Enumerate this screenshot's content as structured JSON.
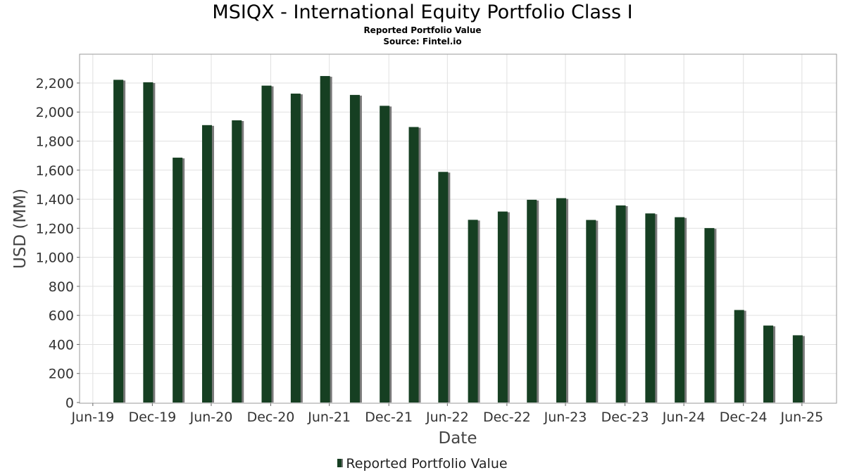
{
  "chart_data": {
    "type": "bar",
    "title": "MSIQX - International Equity Portfolio Class I",
    "subtitle": "Reported Portfolio Value",
    "source": "Source: Fintel.io",
    "xlabel": "Date",
    "ylabel": "USD (MM)",
    "ylim": [
      0,
      2350
    ],
    "yticks": [
      0,
      200,
      400,
      600,
      800,
      1000,
      1200,
      1400,
      1600,
      1800,
      2000,
      2200
    ],
    "ytick_labels": [
      "0",
      "200",
      "400",
      "600",
      "800",
      "1,000",
      "1,200",
      "1,400",
      "1,600",
      "1,800",
      "2,000",
      "2,200"
    ],
    "xlim": [
      "2019-05-20",
      "2025-10-15"
    ],
    "xticks": [
      "2019-06-30",
      "2019-12-31",
      "2020-06-30",
      "2020-12-31",
      "2021-06-30",
      "2021-12-31",
      "2022-06-30",
      "2022-12-31",
      "2023-06-30",
      "2023-12-31",
      "2024-06-30",
      "2024-12-31",
      "2025-06-30"
    ],
    "xtick_labels": [
      "Jun-19",
      "Dec-19",
      "Jun-20",
      "Dec-20",
      "Jun-21",
      "Dec-21",
      "Jun-22",
      "Dec-22",
      "Jun-23",
      "Dec-23",
      "Jun-24",
      "Dec-24",
      "Jun-25"
    ],
    "grid": true,
    "legend_position": "bottom",
    "colors": {
      "bar": "#163f22",
      "bar_shadow": "#7a7a7a",
      "grid": "#e0e0e0"
    },
    "series": [
      {
        "name": "Reported Portfolio Value",
        "x": [
          "2019-09-30",
          "2019-12-31",
          "2020-03-31",
          "2020-06-30",
          "2020-09-30",
          "2020-12-31",
          "2021-03-31",
          "2021-06-30",
          "2021-09-30",
          "2021-12-31",
          "2022-03-31",
          "2022-06-30",
          "2022-09-30",
          "2022-12-31",
          "2023-03-31",
          "2023-06-30",
          "2023-09-30",
          "2023-12-31",
          "2024-03-31",
          "2024-06-30",
          "2024-09-30",
          "2024-12-31",
          "2025-03-31",
          "2025-06-30"
        ],
        "values": [
          2222,
          2205,
          1686,
          1910,
          1943,
          2182,
          2127,
          2248,
          2118,
          2043,
          1897,
          1588,
          1258,
          1315,
          1396,
          1407,
          1257,
          1357,
          1302,
          1276,
          1201,
          637,
          530,
          463
        ]
      }
    ]
  }
}
